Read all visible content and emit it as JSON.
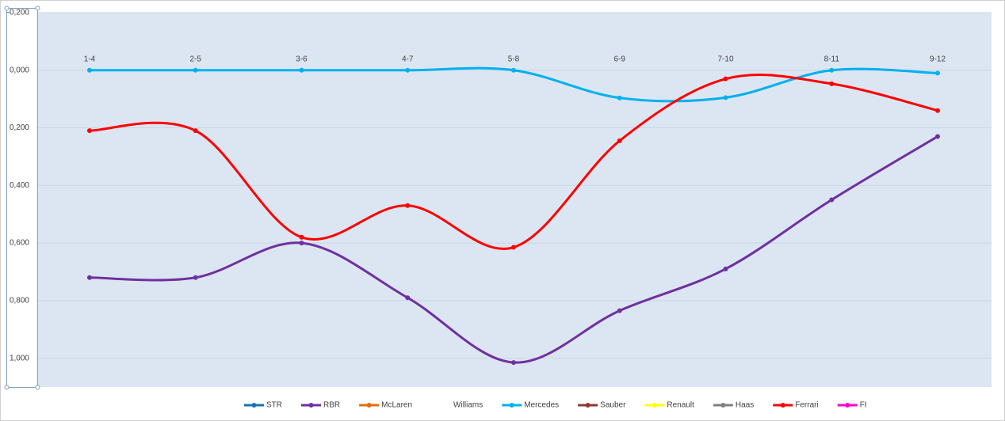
{
  "chart_data": {
    "type": "line",
    "smooth": true,
    "reverse_y": true,
    "grid": true,
    "legend": "bottom",
    "categories": [
      "1-4",
      "2-5",
      "3-6",
      "4-7",
      "5-8",
      "6-9",
      "7-10",
      "8-11",
      "9-12"
    ],
    "ylim": [
      -0.2,
      1.1
    ],
    "yticks": [
      {
        "value": -0.2,
        "label": "-0,200"
      },
      {
        "value": 0,
        "label": "0,000"
      },
      {
        "value": 0.2,
        "label": "0,200"
      },
      {
        "value": 0.4,
        "label": "0,400"
      },
      {
        "value": 0.6,
        "label": "0,600"
      },
      {
        "value": 0.8,
        "label": "0,800"
      },
      {
        "value": 1.0,
        "label": "1,000"
      }
    ],
    "series": [
      {
        "name": "STR",
        "color": "#1f6fb5",
        "values": [
          null,
          null,
          null,
          null,
          null,
          null,
          null,
          null,
          null
        ]
      },
      {
        "name": "RBR",
        "color": "#7030a0",
        "values": [
          0.72,
          0.72,
          0.6,
          0.79,
          1.015,
          0.835,
          0.69,
          0.45,
          0.23
        ]
      },
      {
        "name": "McLaren",
        "color": "#e46c0a",
        "values": [
          null,
          null,
          null,
          null,
          null,
          null,
          null,
          null,
          null
        ]
      },
      {
        "name": "Williams",
        "color": "#ffffff",
        "values": [
          null,
          null,
          null,
          null,
          null,
          null,
          null,
          null,
          null
        ]
      },
      {
        "name": "Mercedes",
        "color": "#00b0f0",
        "values": [
          0,
          0,
          0,
          0,
          0,
          0.096,
          0.095,
          0,
          0.01
        ]
      },
      {
        "name": "Sauber",
        "color": "#8b3a2e",
        "values": [
          null,
          null,
          null,
          null,
          null,
          null,
          null,
          null,
          null
        ]
      },
      {
        "name": "Renault",
        "color": "#ffff00",
        "values": [
          null,
          null,
          null,
          null,
          null,
          null,
          null,
          null,
          null
        ]
      },
      {
        "name": "Haas",
        "color": "#808080",
        "values": [
          null,
          null,
          null,
          null,
          null,
          null,
          null,
          null,
          null
        ]
      },
      {
        "name": "Ferrari",
        "color": "#ff0000",
        "values": [
          0.21,
          0.21,
          0.58,
          0.47,
          0.615,
          0.245,
          0.03,
          0.047,
          0.14
        ]
      },
      {
        "name": "FI",
        "color": "#ff00cc",
        "values": [
          null,
          null,
          null,
          null,
          null,
          null,
          null,
          null,
          null
        ]
      }
    ]
  }
}
